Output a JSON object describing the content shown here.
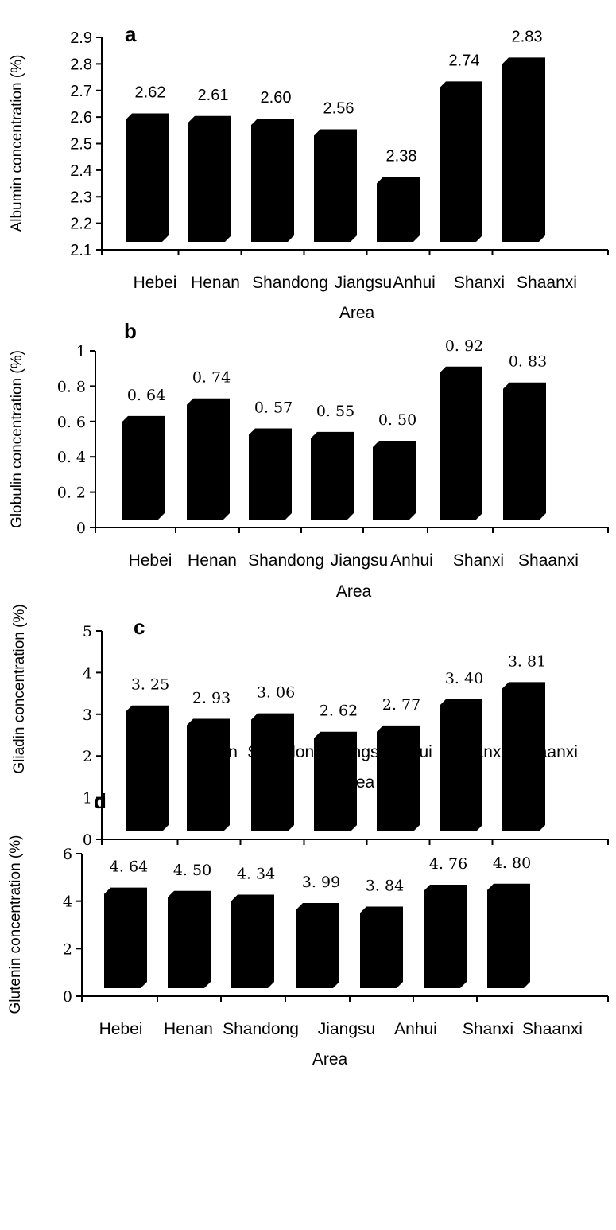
{
  "chart_data": [
    {
      "type": "bar",
      "panel": "a",
      "categories": [
        "Hebei",
        "Henan",
        "Shandong",
        "Jiangsu",
        "Anhui",
        "Shanxi",
        "Shaanxi"
      ],
      "values": [
        2.62,
        2.61,
        2.6,
        2.56,
        2.38,
        2.74,
        2.83
      ],
      "value_labels": [
        "2.62",
        "2.61",
        "2.60",
        "2.56",
        "2.38",
        "2.74",
        "2.83"
      ],
      "xlabel": "Area",
      "ylabel": "Albumin concentration (%)",
      "ylim": [
        2.1,
        2.9
      ],
      "yticks": [
        "2.1",
        "2.2",
        "2.3",
        "2.4",
        "2.5",
        "2.6",
        "2.7",
        "2.8",
        "2.9"
      ],
      "grid": false
    },
    {
      "type": "bar",
      "panel": "b",
      "categories": [
        "Hebei",
        "Henan",
        "Shandong",
        "Jiangsu",
        "Anhui",
        "Shanxi",
        "Shaanxi"
      ],
      "values": [
        0.64,
        0.74,
        0.57,
        0.55,
        0.5,
        0.92,
        0.83
      ],
      "value_labels": [
        "0. 64",
        "0. 74",
        "0. 57",
        "0. 55",
        "0. 50",
        "0. 92",
        "0. 83"
      ],
      "xlabel": "Area",
      "ylabel": "Globulin concentration (%)",
      "ylim": [
        0,
        1
      ],
      "yticks": [
        "0",
        "0. 2",
        "0. 4",
        "0. 6",
        "0. 8",
        "1"
      ],
      "grid": false
    },
    {
      "type": "bar",
      "panel": "c",
      "categories": [
        "Hebei",
        "Henan",
        "Shandong",
        "Jiangsu",
        "Anhui",
        "Shanxi",
        "Shaanxi"
      ],
      "values": [
        3.25,
        2.93,
        3.06,
        2.62,
        2.77,
        3.4,
        3.81
      ],
      "value_labels": [
        "3. 25",
        "2. 93",
        "3. 06",
        "2. 62",
        "2. 77",
        "3. 40",
        "3. 81"
      ],
      "xlabel": "Area",
      "ylabel": "Gliadin concentration (%)",
      "ylim": [
        0,
        5
      ],
      "yticks": [
        "0",
        "1",
        "2",
        "3",
        "4",
        "5"
      ],
      "grid": false
    },
    {
      "type": "bar",
      "panel": "d",
      "categories": [
        "Hebei",
        "Henan",
        "Shandong",
        "Jiangsu",
        "Anhui",
        "Shanxi",
        "Shaanxi"
      ],
      "values": [
        4.64,
        4.5,
        4.34,
        3.99,
        3.84,
        4.76,
        4.8
      ],
      "value_labels": [
        "4. 64",
        "4. 50",
        "4. 34",
        "3. 99",
        "3. 84",
        "4. 76",
        "4. 80"
      ],
      "xlabel": "Area",
      "ylabel": "Glutenin concentration (%)",
      "ylim": [
        0,
        6
      ],
      "yticks": [
        "0",
        "2",
        "4",
        "6"
      ],
      "grid": false
    }
  ]
}
